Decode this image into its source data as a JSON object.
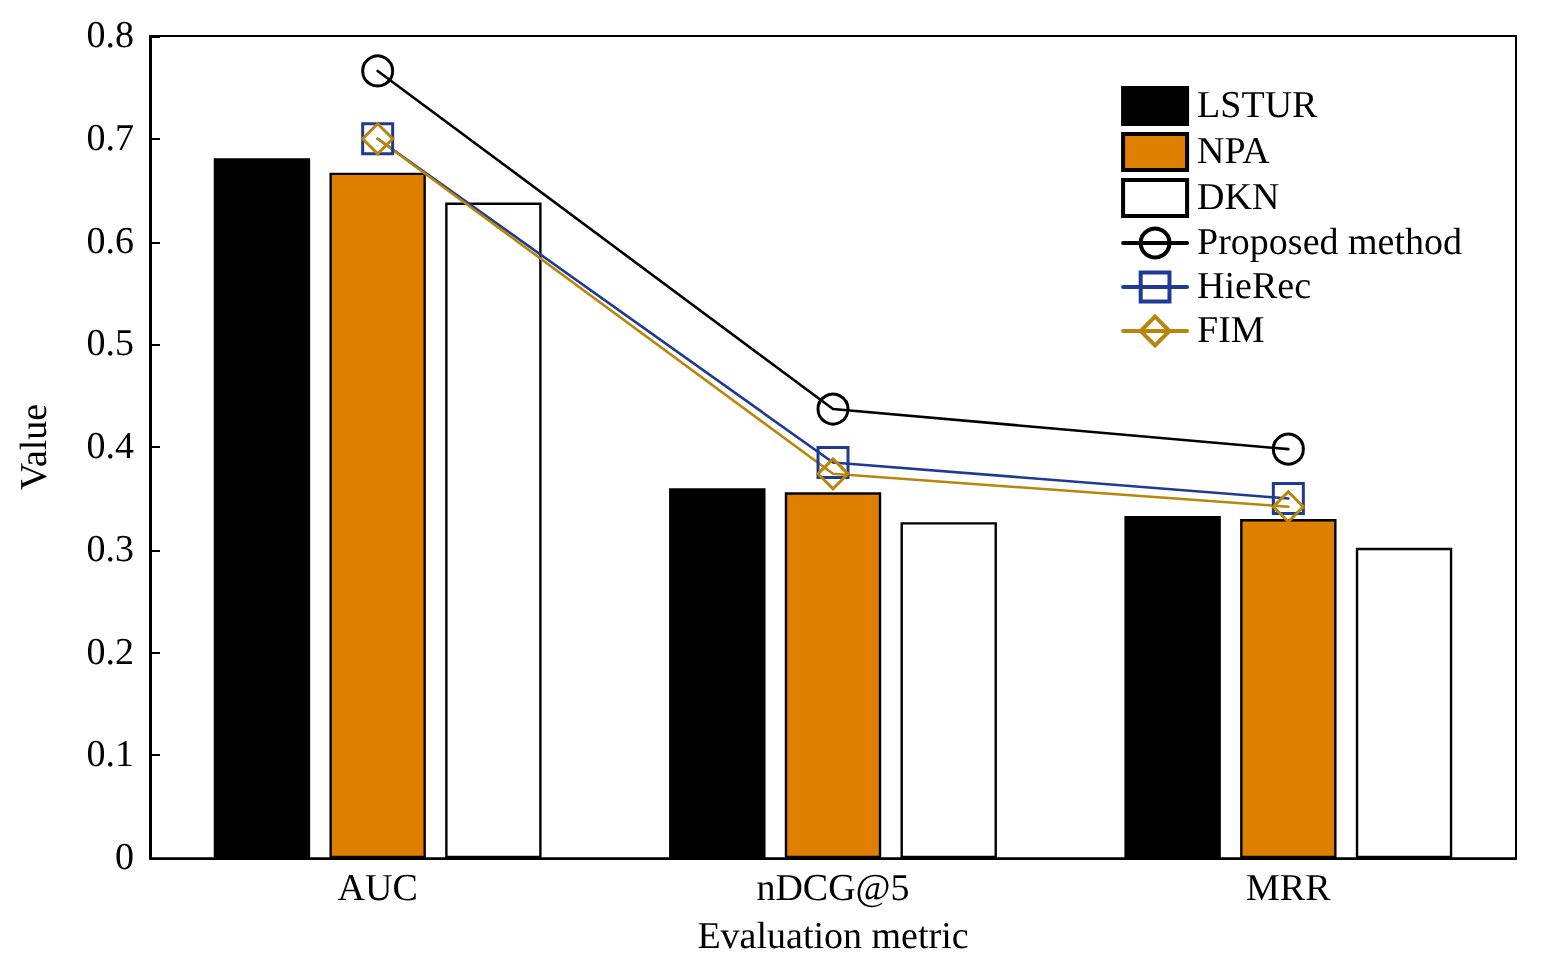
{
  "chart_data": {
    "type": "bar",
    "xlabel": "Evaluation metric",
    "ylabel": "Value",
    "categories": [
      "AUC",
      "nDCG@5",
      "MRR"
    ],
    "series": [
      {
        "name": "LSTUR",
        "color": "#000000",
        "values": [
          0.681,
          0.36,
          0.333
        ]
      },
      {
        "name": "NPA",
        "color": "#df7f00",
        "values": [
          0.667,
          0.356,
          0.33
        ]
      },
      {
        "name": "DKN",
        "color": "#ffffff",
        "values": [
          0.638,
          0.327,
          0.302
        ]
      },
      {
        "name": "Proposed method",
        "type": "line",
        "color": "#000000",
        "marker": "circle",
        "values": [
          0.766,
          0.437,
          0.398
        ]
      },
      {
        "name": "HieRec",
        "type": "line",
        "color": "#1f3a93",
        "marker": "square",
        "values": [
          0.7,
          0.385,
          0.35
        ]
      },
      {
        "name": "FIM",
        "type": "line",
        "color": "#b8860b",
        "marker": "diamond",
        "values": [
          0.7,
          0.374,
          0.342
        ]
      }
    ],
    "ylim": [
      0,
      0.8
    ],
    "yticks": [
      0,
      0.1,
      0.2,
      0.3,
      0.4,
      0.5,
      0.6,
      0.7,
      0.8
    ],
    "grid": false,
    "legend": "top right",
    "line_style": "solid"
  }
}
